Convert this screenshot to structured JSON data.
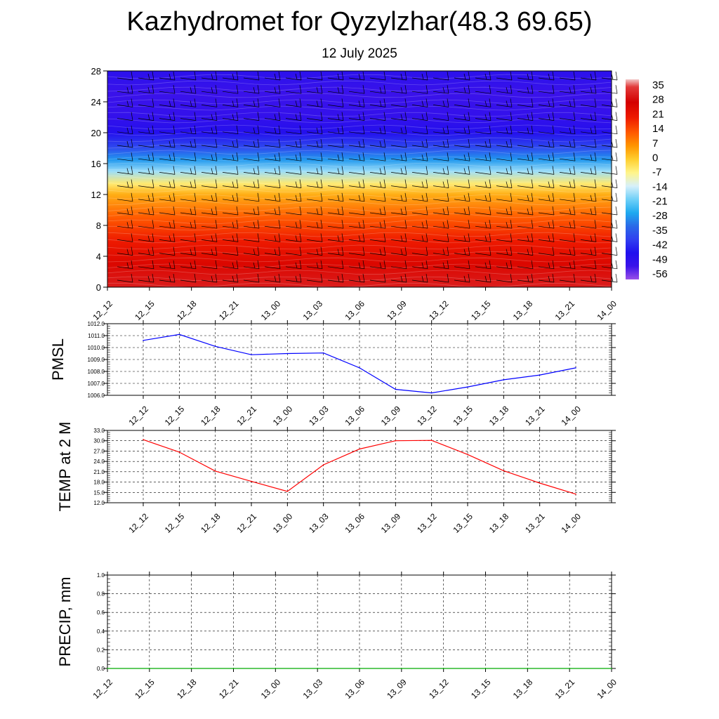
{
  "title": "Kazhydromet for Qyzylzhar(48.3 69.65)",
  "subtitle": "12 July 2025",
  "time_labels": [
    "12_12",
    "12_15",
    "12_18",
    "12_21",
    "13_00",
    "13_03",
    "13_06",
    "13_09",
    "13_12",
    "13_15",
    "13_18",
    "13_21",
    "14_00"
  ],
  "chart_data": [
    {
      "type": "heatmap",
      "name": "vertical-cross-section",
      "x": [
        "12_12",
        "12_15",
        "12_18",
        "12_21",
        "13_00",
        "13_03",
        "13_06",
        "13_09",
        "13_12",
        "13_15",
        "13_18",
        "13_21",
        "14_00"
      ],
      "y_ticks": [
        0,
        4,
        8,
        12,
        16,
        20,
        24,
        28
      ],
      "ylim": [
        0,
        28
      ],
      "colorbar": {
        "labels": [
          "35",
          "28",
          "21",
          "14",
          "7",
          "0",
          "-7",
          "-14",
          "-21",
          "-28",
          "-35",
          "-42",
          "-49",
          "-56"
        ],
        "range": [
          -63,
          42
        ],
        "stops": [
          {
            "v": 42,
            "c": "#f2c6c6"
          },
          {
            "v": 38,
            "c": "#e23a3a"
          },
          {
            "v": 30,
            "c": "#d40000"
          },
          {
            "v": 22,
            "c": "#ee1a00"
          },
          {
            "v": 14,
            "c": "#ff5a00"
          },
          {
            "v": 7,
            "c": "#ff9600"
          },
          {
            "v": 0,
            "c": "#ffcf30"
          },
          {
            "v": -7,
            "c": "#fff58a"
          },
          {
            "v": -14,
            "c": "#d7f0fa"
          },
          {
            "v": -21,
            "c": "#6fd0f8"
          },
          {
            "v": -28,
            "c": "#1eaaf0"
          },
          {
            "v": -35,
            "c": "#2a6ae8"
          },
          {
            "v": -42,
            "c": "#3040f0"
          },
          {
            "v": -49,
            "c": "#2010ee"
          },
          {
            "v": -56,
            "c": "#3a12ea"
          },
          {
            "v": -63,
            "c": "#9a50e8"
          }
        ]
      },
      "temperature_profile": [
        {
          "level": 0,
          "value": 34
        },
        {
          "level": 3,
          "value": 28
        },
        {
          "level": 6,
          "value": 22
        },
        {
          "level": 9,
          "value": 14
        },
        {
          "level": 12,
          "value": 4
        },
        {
          "level": 13.4,
          "value": -5
        },
        {
          "level": 15,
          "value": -18
        },
        {
          "level": 16.5,
          "value": -30
        },
        {
          "level": 18,
          "value": -40
        },
        {
          "level": 20,
          "value": -50
        },
        {
          "level": 22,
          "value": -54
        },
        {
          "level": 25,
          "value": -56
        },
        {
          "level": 28,
          "value": -52
        }
      ],
      "wind_barbs": true
    },
    {
      "type": "line",
      "name": "pmsl",
      "ylabel": "PMSL",
      "ylim": [
        1006.0,
        1012.0
      ],
      "y_ticks": [
        "1006.0",
        "1007.0",
        "1008.0",
        "1009.0",
        "1010.0",
        "1011.0",
        "1012.0"
      ],
      "categories": [
        "12_12",
        "12_15",
        "12_18",
        "12_21",
        "13_00",
        "13_03",
        "13_06",
        "13_09",
        "13_12",
        "13_15",
        "13_18",
        "13_21",
        "14_00"
      ],
      "values": [
        1010.6,
        1011.1,
        1010.1,
        1009.4,
        1009.5,
        1009.55,
        1008.3,
        1006.5,
        1006.2,
        1006.7,
        1007.3,
        1007.7,
        1008.3
      ],
      "color": "#0000ff",
      "grid": true
    },
    {
      "type": "line",
      "name": "temp-2m",
      "ylabel": "TEMP at 2 M",
      "ylim": [
        12.0,
        33.0
      ],
      "y_ticks": [
        "12.0",
        "15.0",
        "18.0",
        "21.0",
        "24.0",
        "27.0",
        "30.0",
        "33.0"
      ],
      "categories": [
        "12_12",
        "12_15",
        "12_18",
        "12_21",
        "13_00",
        "13_03",
        "13_06",
        "13_09",
        "13_12",
        "13_15",
        "13_18",
        "13_21",
        "14_00"
      ],
      "values": [
        30.3,
        26.7,
        21.2,
        18.2,
        15.3,
        23.0,
        27.6,
        30.0,
        30.1,
        26.0,
        21.3,
        17.7,
        14.5
      ],
      "color": "#ff0000",
      "grid": true
    },
    {
      "type": "line",
      "name": "precip",
      "ylabel": "PRECIP, mm",
      "ylim": [
        0.0,
        1.0
      ],
      "y_ticks": [
        "0.0",
        "0.2",
        "0.4",
        "0.6",
        "0.8",
        "1.0"
      ],
      "categories": [
        "12_12",
        "12_15",
        "12_18",
        "12_21",
        "13_00",
        "13_03",
        "13_06",
        "13_09",
        "13_12",
        "13_15",
        "13_18",
        "13_21",
        "14_00"
      ],
      "values": [
        0,
        0,
        0,
        0,
        0,
        0,
        0,
        0,
        0,
        0,
        0,
        0,
        0
      ],
      "color": "#00aa00",
      "grid": true
    }
  ]
}
